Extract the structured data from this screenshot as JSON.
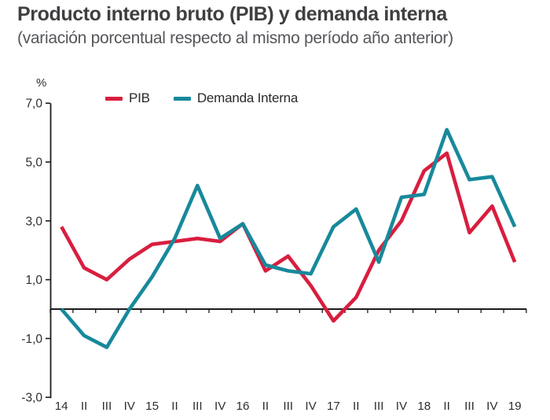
{
  "header": {
    "title": "Producto interno bruto (PIB) y demanda interna",
    "subtitle": "(variación porcentual respecto al mismo período año anterior)"
  },
  "chart_data": {
    "type": "line",
    "title": "Producto interno bruto (PIB) y demanda interna",
    "subtitle": "(variación porcentual respecto al mismo período año anterior)",
    "unit_label": "%",
    "categories": [
      "14",
      "II",
      "III",
      "IV",
      "15",
      "II",
      "III",
      "IV",
      "16",
      "II",
      "III",
      "IV",
      "17",
      "II",
      "III",
      "IV",
      "18",
      "II",
      "III",
      "IV",
      "19"
    ],
    "series": [
      {
        "name": "PIB",
        "color": "#d81e3f",
        "values": [
          2.8,
          1.4,
          1.0,
          1.7,
          2.2,
          2.3,
          2.4,
          2.3,
          2.9,
          1.3,
          1.8,
          0.8,
          -0.4,
          0.4,
          2.0,
          3.0,
          4.7,
          5.3,
          2.6,
          3.5,
          1.6
        ]
      },
      {
        "name": "Demanda Interna",
        "color": "#17899b",
        "values": [
          0.0,
          -0.9,
          -1.3,
          0.0,
          1.1,
          2.4,
          4.2,
          2.4,
          2.9,
          1.5,
          1.3,
          1.2,
          2.8,
          3.4,
          1.6,
          3.8,
          3.9,
          6.1,
          4.4,
          4.5,
          2.8
        ]
      }
    ],
    "ylim": [
      -3.0,
      7.0
    ],
    "yticks": [
      7,
      5,
      3,
      1,
      -1,
      -3
    ],
    "ytick_labels": [
      "7,0",
      "5,0",
      "3,0",
      "1,0",
      "-1,0",
      "-3,0"
    ],
    "baseline": 0,
    "grid": false,
    "legend_position": "top-left-inside"
  },
  "colors": {
    "background": "#ffffff",
    "axis": "#1c1c1c",
    "tick_text": "#2d2e30",
    "title_text": "#3e3f41",
    "subtitle_text": "#54565a"
  }
}
